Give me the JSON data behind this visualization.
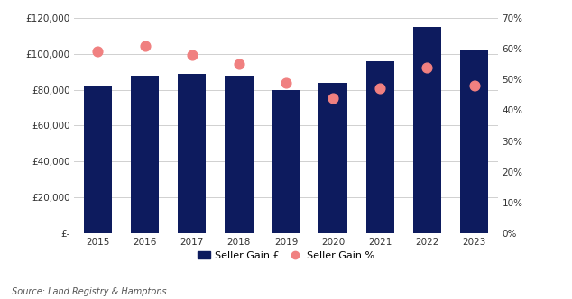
{
  "years": [
    2015,
    2016,
    2017,
    2018,
    2019,
    2020,
    2021,
    2022,
    2023
  ],
  "seller_gain_gbp": [
    82000,
    88000,
    89000,
    88000,
    80000,
    84000,
    96000,
    115000,
    102000
  ],
  "seller_gain_pct": [
    0.59,
    0.61,
    0.58,
    0.55,
    0.49,
    0.44,
    0.47,
    0.54,
    0.48
  ],
  "bar_color": "#0d1b5e",
  "dot_color": "#f08080",
  "bar_label": "Seller Gain £",
  "dot_label": "Seller Gain %",
  "ylim_left": [
    0,
    120000
  ],
  "ylim_right": [
    0,
    0.7
  ],
  "yticks_left": [
    0,
    20000,
    40000,
    60000,
    80000,
    100000,
    120000
  ],
  "yticks_right": [
    0,
    0.1,
    0.2,
    0.3,
    0.4,
    0.5,
    0.6,
    0.7
  ],
  "source_text": "Source: Land Registry & Hamptons",
  "background_color": "#ffffff",
  "grid_color": "#d0d0d0"
}
